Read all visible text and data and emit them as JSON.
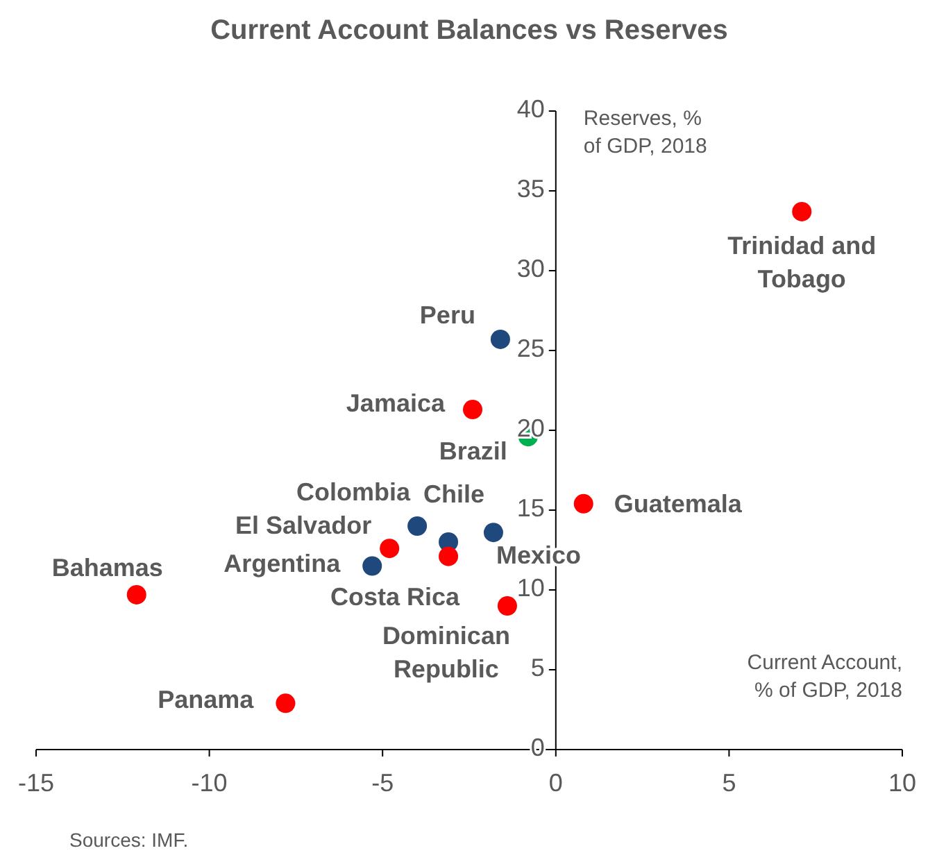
{
  "chart_data": {
    "type": "scatter",
    "title": "Current Account Balances vs Reserves",
    "xlabel": "Current Account, % of GDP, 2018",
    "ylabel": "Reserves, % of GDP, 2018",
    "x": [
      7.1,
      -1.6,
      -2.4,
      -0.8,
      0.8,
      -4.0,
      -3.1,
      -1.8,
      -4.8,
      -3.1,
      -5.3,
      -12.1,
      -1.4,
      -7.8
    ],
    "series": [
      {
        "values": [
          33.7,
          25.7,
          21.3,
          19.6,
          15.4,
          14.0,
          13.0,
          13.6,
          12.6,
          12.1,
          11.5,
          9.7,
          9.0,
          2.9
        ],
        "colors": [
          "#ff0000",
          "#1f497d",
          "#ff0000",
          "#00b050",
          "#ff0000",
          "#1f497d",
          "#1f497d",
          "#1f497d",
          "#ff0000",
          "#ff0000",
          "#1f497d",
          "#ff0000",
          "#ff0000",
          "#ff0000"
        ]
      }
    ],
    "annotations": [
      {
        "text": "Trinidad and Tobago",
        "x": 7.1,
        "y": 33.7
      },
      {
        "text": "Peru",
        "x": -1.6,
        "y": 25.7
      },
      {
        "text": "Jamaica",
        "x": -2.4,
        "y": 21.3
      },
      {
        "text": "Brazil",
        "x": -0.8,
        "y": 19.6
      },
      {
        "text": "Guatemala",
        "x": 0.8,
        "y": 15.4
      },
      {
        "text": "Colombia",
        "x": -4.0,
        "y": 14.0
      },
      {
        "text": "Chile",
        "x": -3.1,
        "y": 13.0
      },
      {
        "text": "Mexico",
        "x": -1.8,
        "y": 13.6
      },
      {
        "text": "El Salvador",
        "x": -4.8,
        "y": 12.6
      },
      {
        "text": "Costa Rica",
        "x": -3.1,
        "y": 12.1
      },
      {
        "text": "Argentina",
        "x": -5.3,
        "y": 11.5
      },
      {
        "text": "Bahamas",
        "x": -12.1,
        "y": 9.7
      },
      {
        "text": "Dominican Republic",
        "x": -1.4,
        "y": 9.0
      },
      {
        "text": "Panama",
        "x": -7.8,
        "y": 2.9
      },
      "Sources: IMF."
    ],
    "xlim": [
      -15,
      10
    ],
    "ylim": [
      0,
      40
    ],
    "xticks": [
      -15,
      -10,
      -5,
      0,
      5,
      10
    ],
    "yticks": [
      0,
      5,
      10,
      15,
      20,
      25,
      30,
      35,
      40
    ],
    "marker": "circle",
    "grid": false
  }
}
